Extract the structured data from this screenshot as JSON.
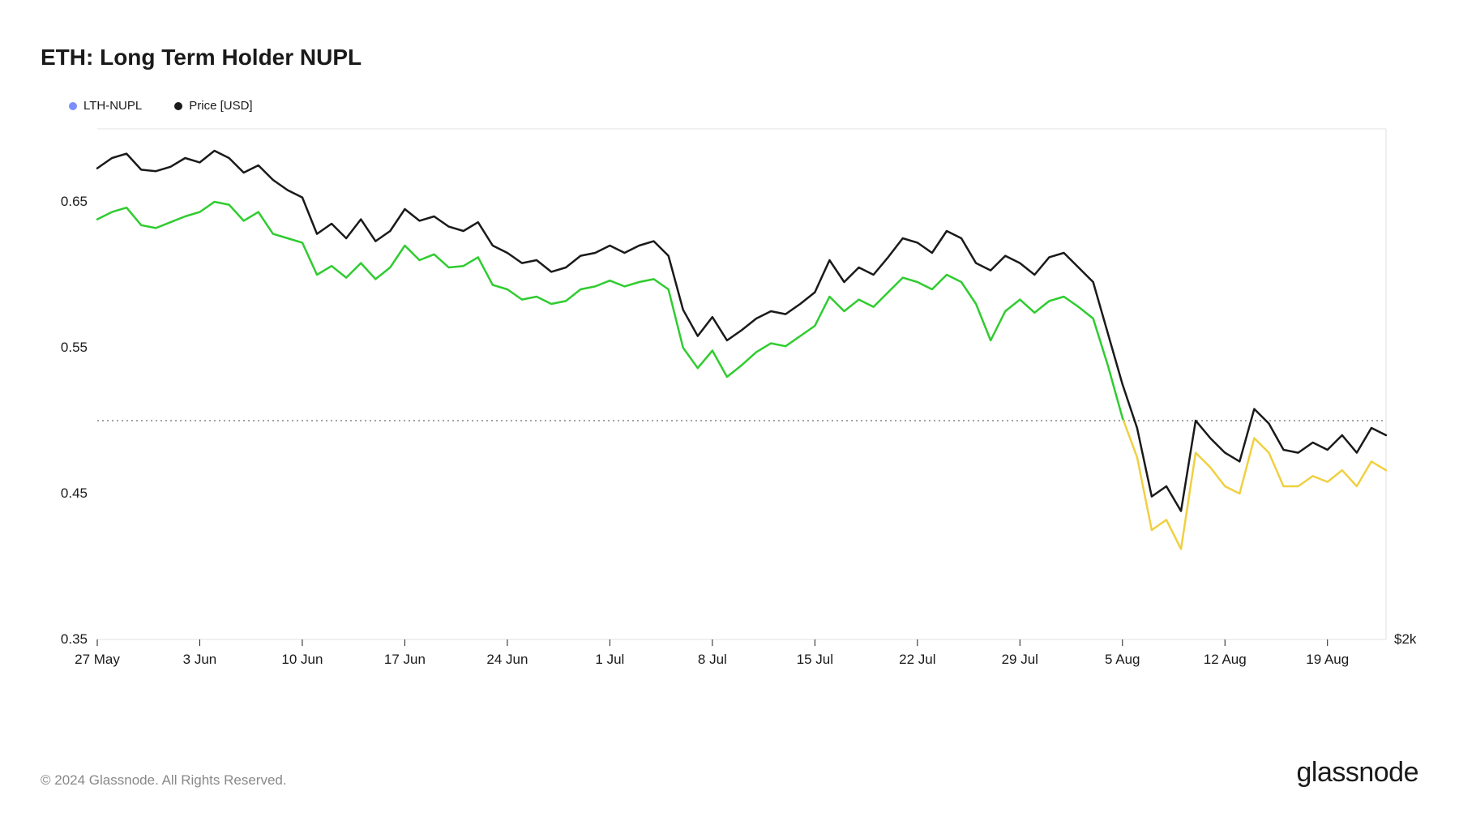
{
  "title": "ETH: Long Term Holder NUPL",
  "legend": [
    {
      "label": "LTH-NUPL",
      "color": "#7b8fff"
    },
    {
      "label": "Price [USD]",
      "color": "#1a1a1a"
    }
  ],
  "copyright": "© 2024 Glassnode. All Rights Reserved.",
  "brand": "glassnode",
  "chart": {
    "type": "line",
    "background_color": "#ffffff",
    "grid_color": "#e0e0e0",
    "dotted_line_color": "#444444",
    "y_axis": {
      "min": 0.35,
      "max": 0.7,
      "ticks": [
        0.35,
        0.45,
        0.55,
        0.65
      ],
      "tick_labels": [
        "0.35",
        "0.45",
        "0.55",
        "0.65"
      ],
      "label_fontsize": 17
    },
    "y_axis_right": {
      "ticks": [
        0.35
      ],
      "tick_labels": [
        "$2k"
      ]
    },
    "x_axis": {
      "ticks": [
        1,
        8,
        15,
        22,
        29,
        36,
        43,
        50,
        57,
        64,
        71,
        78,
        85
      ],
      "tick_labels": [
        "27 May",
        "3 Jun",
        "10 Jun",
        "17 Jun",
        "24 Jun",
        "1 Jul",
        "8 Jul",
        "15 Jul",
        "22 Jul",
        "29 Jul",
        "5 Aug",
        "12 Aug",
        "19 Aug"
      ],
      "label_fontsize": 17
    },
    "dotted_ref_y": 0.5,
    "series_price": {
      "color": "#1a1a1a",
      "line_width": 2.5,
      "data": [
        0.673,
        0.68,
        0.683,
        0.672,
        0.671,
        0.674,
        0.68,
        0.677,
        0.685,
        0.68,
        0.67,
        0.675,
        0.665,
        0.658,
        0.653,
        0.628,
        0.635,
        0.625,
        0.638,
        0.623,
        0.63,
        0.645,
        0.637,
        0.64,
        0.633,
        0.63,
        0.636,
        0.62,
        0.615,
        0.608,
        0.61,
        0.602,
        0.605,
        0.613,
        0.615,
        0.62,
        0.615,
        0.62,
        0.623,
        0.613,
        0.576,
        0.558,
        0.571,
        0.555,
        0.562,
        0.57,
        0.575,
        0.573,
        0.58,
        0.588,
        0.61,
        0.595,
        0.605,
        0.6,
        0.612,
        0.625,
        0.622,
        0.615,
        0.63,
        0.625,
        0.608,
        0.603,
        0.613,
        0.608,
        0.6,
        0.612,
        0.615,
        0.605,
        0.595,
        0.56,
        0.525,
        0.495,
        0.448,
        0.455,
        0.438,
        0.5,
        0.488,
        0.478,
        0.472,
        0.508,
        0.498,
        0.48,
        0.478,
        0.485,
        0.48,
        0.49,
        0.478,
        0.495,
        0.49
      ]
    },
    "series_nupl": {
      "color_above": "#2fcc2f",
      "color_below": "#f0d040",
      "threshold": 0.5,
      "line_width": 2.5,
      "data": [
        0.638,
        0.643,
        0.646,
        0.634,
        0.632,
        0.636,
        0.64,
        0.643,
        0.65,
        0.648,
        0.637,
        0.643,
        0.628,
        0.625,
        0.622,
        0.6,
        0.606,
        0.598,
        0.608,
        0.597,
        0.605,
        0.62,
        0.61,
        0.614,
        0.605,
        0.606,
        0.612,
        0.593,
        0.59,
        0.583,
        0.585,
        0.58,
        0.582,
        0.59,
        0.592,
        0.596,
        0.592,
        0.595,
        0.597,
        0.59,
        0.55,
        0.536,
        0.548,
        0.53,
        0.538,
        0.547,
        0.553,
        0.551,
        0.558,
        0.565,
        0.585,
        0.575,
        0.583,
        0.578,
        0.588,
        0.598,
        0.595,
        0.59,
        0.6,
        0.595,
        0.58,
        0.555,
        0.575,
        0.583,
        0.574,
        0.582,
        0.585,
        0.578,
        0.57,
        0.538,
        0.502,
        0.475,
        0.425,
        0.432,
        0.412,
        0.478,
        0.468,
        0.455,
        0.45,
        0.488,
        0.478,
        0.455,
        0.455,
        0.462,
        0.458,
        0.466,
        0.455,
        0.472,
        0.466
      ]
    }
  }
}
